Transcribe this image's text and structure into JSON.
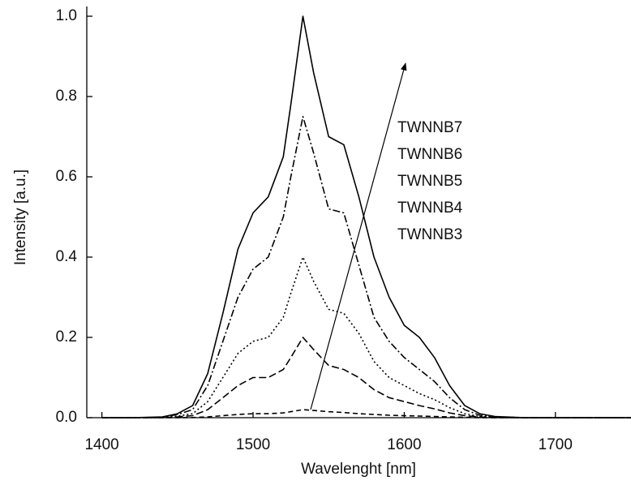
{
  "chart_data": {
    "type": "line",
    "xlabel": "Wavelenght [nm]",
    "ylabel": "Intensity [a.u.]",
    "x": [
      1400,
      1420,
      1440,
      1450,
      1460,
      1470,
      1480,
      1490,
      1500,
      1510,
      1520,
      1525,
      1533,
      1540,
      1550,
      1560,
      1570,
      1580,
      1590,
      1600,
      1610,
      1620,
      1630,
      1640,
      1650,
      1660,
      1680,
      1700,
      1750
    ],
    "series": [
      {
        "name": "TWNNB7",
        "color": "#000000",
        "dash": "none",
        "values": [
          0,
          0,
          0.002,
          0.01,
          0.03,
          0.11,
          0.26,
          0.42,
          0.51,
          0.55,
          0.65,
          0.78,
          1.0,
          0.86,
          0.7,
          0.68,
          0.55,
          0.4,
          0.3,
          0.23,
          0.2,
          0.15,
          0.08,
          0.03,
          0.01,
          0.003,
          0,
          0,
          0
        ]
      },
      {
        "name": "TWNNB6",
        "color": "#000000",
        "dash": "9 3 2 3",
        "values": [
          0,
          0,
          0.001,
          0.008,
          0.02,
          0.08,
          0.19,
          0.3,
          0.37,
          0.4,
          0.5,
          0.6,
          0.75,
          0.66,
          0.52,
          0.51,
          0.38,
          0.25,
          0.19,
          0.15,
          0.12,
          0.09,
          0.05,
          0.02,
          0.006,
          0.002,
          0,
          0,
          0
        ]
      },
      {
        "name": "TWNNB5",
        "color": "#000000",
        "dash": "2 3",
        "values": [
          0,
          0,
          0,
          0.004,
          0.01,
          0.04,
          0.1,
          0.16,
          0.19,
          0.2,
          0.25,
          0.31,
          0.4,
          0.34,
          0.27,
          0.26,
          0.21,
          0.14,
          0.1,
          0.08,
          0.06,
          0.045,
          0.025,
          0.01,
          0.003,
          0.001,
          0,
          0,
          0
        ]
      },
      {
        "name": "TWNNB4",
        "color": "#000000",
        "dash": "9 4",
        "values": [
          0,
          0,
          0,
          0.002,
          0.005,
          0.02,
          0.05,
          0.08,
          0.1,
          0.1,
          0.12,
          0.15,
          0.2,
          0.17,
          0.13,
          0.12,
          0.1,
          0.07,
          0.05,
          0.04,
          0.03,
          0.022,
          0.012,
          0.005,
          0.002,
          0,
          0,
          0,
          0
        ]
      },
      {
        "name": "TWNNB3",
        "color": "#000000",
        "dash": "6 4",
        "values": [
          0,
          0,
          0,
          0,
          0.0005,
          0.002,
          0.005,
          0.008,
          0.01,
          0.01,
          0.012,
          0.015,
          0.02,
          0.018,
          0.015,
          0.013,
          0.01,
          0.008,
          0.006,
          0.005,
          0.004,
          0.003,
          0.002,
          0.001,
          0,
          0,
          0,
          0,
          0
        ]
      }
    ],
    "xlim": [
      1390,
      1750
    ],
    "xticks": [
      1400,
      1500,
      1600,
      1700
    ],
    "ylim": [
      0,
      1.0
    ],
    "yticks": [
      {
        "value": 0,
        "label": "0.0"
      },
      0.2,
      0.4,
      0.6,
      0.8,
      {
        "value": 1,
        "label": "1.0"
      }
    ],
    "grid": false
  }
}
